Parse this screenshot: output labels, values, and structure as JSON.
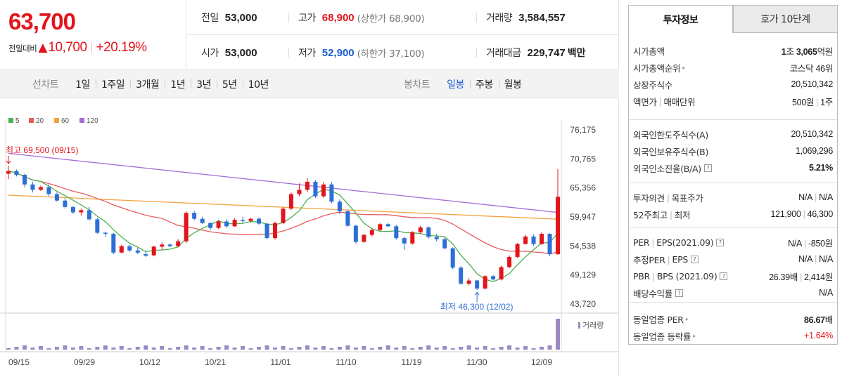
{
  "quote": {
    "price": "63,700",
    "change_label": "전일대비",
    "change_arrow": "▲",
    "change_amount": "10,700",
    "change_percent": "+20.19%"
  },
  "info": {
    "prev_label": "전일",
    "prev": "53,000",
    "high_label": "고가",
    "high": "68,900",
    "upper_limit": "(상한가 68,900)",
    "volume_label": "거래량",
    "volume": "3,584,557",
    "open_label": "시가",
    "open": "53,000",
    "low_label": "저가",
    "low": "52,900",
    "lower_limit": "(하한가 37,100)",
    "amount_label": "거래대금",
    "amount": "229,747",
    "amount_unit": "백만"
  },
  "periods": {
    "group_label": "선차트",
    "items": [
      "1일",
      "1주일",
      "3개월",
      "1년",
      "3년",
      "5년",
      "10년"
    ]
  },
  "candle_periods": {
    "group_label": "봉차트",
    "items": [
      "일봉",
      "주봉",
      "월봉"
    ],
    "selected": "일봉"
  },
  "chart_data": {
    "type": "candlestick",
    "legend": [
      {
        "name": "5",
        "color": "#4caf50"
      },
      {
        "name": "20",
        "color": "#e85c5c"
      },
      {
        "name": "60",
        "color": "#f5a13c"
      },
      {
        "name": "120",
        "color": "#a66bd6"
      }
    ],
    "y_ticks": [
      "76,175",
      "70,765",
      "65,356",
      "59,947",
      "54,538",
      "49,129",
      "43,720"
    ],
    "ylim": [
      43720,
      76175
    ],
    "x_ticks": [
      "09/15",
      "09/29",
      "10/12",
      "10/21",
      "11/01",
      "11/10",
      "11/19",
      "11/30",
      "12/09"
    ],
    "annotation_high": "최고 69,500 (09/15)",
    "annotation_low": "최저 46,300 (12/02)",
    "volume_label": "거래량",
    "colors": {
      "up": "#e4141c",
      "down": "#2d6fd6",
      "volume": "#9a8ac4"
    },
    "candles": [
      [
        68000,
        69500,
        67000,
        68500
      ],
      [
        68500,
        68800,
        67500,
        67800
      ],
      [
        67800,
        68000,
        65500,
        66000
      ],
      [
        66000,
        66500,
        64500,
        65000
      ],
      [
        65000,
        65800,
        64800,
        65500
      ],
      [
        65500,
        66000,
        63800,
        64200
      ],
      [
        64200,
        64500,
        62800,
        63000
      ],
      [
        63000,
        63500,
        61500,
        61800
      ],
      [
        61800,
        62000,
        60500,
        60800
      ],
      [
        60800,
        61500,
        60200,
        61200
      ],
      [
        61200,
        61800,
        59300,
        59500
      ],
      [
        59500,
        59800,
        56800,
        57000
      ],
      [
        57000,
        57200,
        56200,
        56800
      ],
      [
        56800,
        57000,
        53000,
        53300
      ],
      [
        53300,
        54800,
        53200,
        54500
      ],
      [
        54500,
        54800,
        53400,
        53700
      ],
      [
        53700,
        54200,
        53000,
        53300
      ],
      [
        53000,
        53500,
        52500,
        52700
      ],
      [
        52800,
        54600,
        52600,
        54400
      ],
      [
        54400,
        55200,
        53800,
        54800
      ],
      [
        54800,
        55000,
        54300,
        54500
      ],
      [
        54500,
        55800,
        54300,
        55400
      ],
      [
        55400,
        61000,
        55100,
        60700
      ],
      [
        60700,
        61100,
        59300,
        59600
      ],
      [
        59600,
        60000,
        58600,
        58800
      ],
      [
        58800,
        59000,
        57500,
        57900
      ],
      [
        57900,
        59400,
        57700,
        59100
      ],
      [
        59100,
        59500,
        57900,
        58200
      ],
      [
        58200,
        59700,
        58100,
        59400
      ],
      [
        59400,
        60000,
        58800,
        59200
      ],
      [
        59200,
        59800,
        58900,
        59600
      ],
      [
        59600,
        59900,
        58500,
        58700
      ],
      [
        58700,
        58900,
        55800,
        56000
      ],
      [
        56000,
        59100,
        55700,
        58800
      ],
      [
        58800,
        61800,
        58600,
        61500
      ],
      [
        61500,
        64500,
        61200,
        64200
      ],
      [
        64200,
        66200,
        63800,
        65000
      ],
      [
        65000,
        67200,
        64600,
        66500
      ],
      [
        66500,
        66800,
        63500,
        63800
      ],
      [
        63800,
        66500,
        63500,
        66000
      ],
      [
        66000,
        66500,
        62500,
        62800
      ],
      [
        62800,
        63200,
        60500,
        61000
      ],
      [
        61000,
        61300,
        58100,
        58300
      ],
      [
        58300,
        58500,
        55000,
        55300
      ],
      [
        55300,
        56800,
        55100,
        56600
      ],
      [
        56600,
        57800,
        56300,
        57500
      ],
      [
        57500,
        58800,
        57300,
        58600
      ],
      [
        58600,
        58800,
        58000,
        58200
      ],
      [
        58200,
        58500,
        55700,
        56000
      ],
      [
        56000,
        56300,
        53800,
        55000
      ],
      [
        55000,
        57300,
        54800,
        57100
      ],
      [
        57100,
        58300,
        56800,
        58000
      ],
      [
        58000,
        58200,
        55900,
        56200
      ],
      [
        56200,
        56800,
        55400,
        55800
      ],
      [
        55800,
        56100,
        53900,
        54100
      ],
      [
        54100,
        54300,
        50200,
        50500
      ],
      [
        50500,
        50800,
        47300,
        47500
      ],
      [
        47500,
        48500,
        47200,
        48100
      ],
      [
        48100,
        48200,
        46300,
        46600
      ],
      [
        46600,
        49100,
        46400,
        48900
      ],
      [
        48900,
        49100,
        48100,
        48300
      ],
      [
        48300,
        50900,
        48100,
        50600
      ],
      [
        50600,
        52800,
        50400,
        52500
      ],
      [
        52500,
        55100,
        52300,
        54900
      ],
      [
        54900,
        56600,
        54800,
        56300
      ],
      [
        56300,
        56700,
        54600,
        54900
      ],
      [
        54900,
        57100,
        54700,
        56800
      ],
      [
        56800,
        56900,
        52600,
        53000
      ],
      [
        53000,
        68900,
        52900,
        63700
      ]
    ]
  }
}
